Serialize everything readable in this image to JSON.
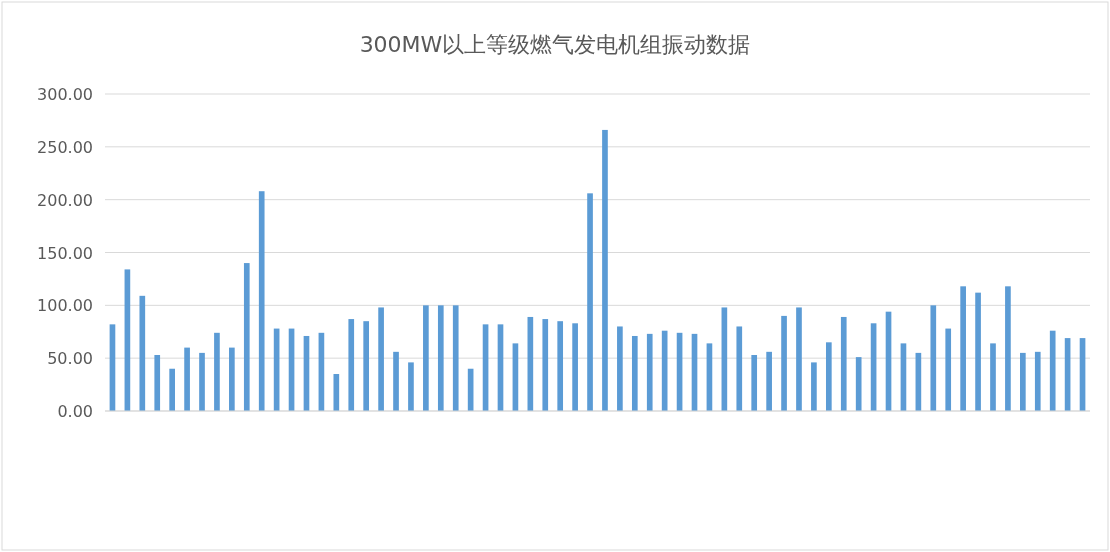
{
  "chart_data": {
    "type": "bar",
    "title": "300MW以上等级燃气发电机组振动数据",
    "categories": [
      null,
      null,
      null,
      null,
      null,
      null,
      null,
      null,
      null,
      null,
      null,
      null,
      null,
      null,
      null,
      null,
      null,
      null,
      null,
      null,
      null,
      null,
      null,
      null,
      null,
      null,
      null,
      null,
      null,
      null,
      null,
      null,
      null,
      null,
      null,
      null,
      null,
      null,
      null,
      null,
      null,
      null,
      null,
      null,
      null,
      null,
      null,
      null,
      null,
      null,
      null,
      null,
      null,
      null,
      null,
      null,
      null,
      null,
      null,
      null,
      null,
      null,
      null,
      null,
      null,
      null
    ],
    "values": [
      82,
      134,
      109,
      53,
      40,
      60,
      55,
      74,
      60,
      140,
      208,
      78,
      78,
      71,
      74,
      35,
      87,
      85,
      98,
      56,
      46,
      100,
      100,
      100,
      40,
      82,
      82,
      64,
      89,
      87,
      85,
      83,
      206,
      266,
      80,
      71,
      73,
      76,
      74,
      73,
      64,
      98,
      80,
      53,
      56,
      90,
      98,
      46,
      65,
      89,
      51,
      83,
      94,
      64,
      55,
      100,
      78,
      118,
      112,
      64,
      118,
      55,
      56,
      76,
      69,
      69
    ],
    "color": "#5b9bd5",
    "ylim": [
      0,
      300
    ],
    "yticks": [
      {
        "value": 0,
        "label": "0.00"
      },
      {
        "value": 50,
        "label": "50.00"
      },
      {
        "value": 100,
        "label": "100.00"
      },
      {
        "value": 150,
        "label": "150.00"
      },
      {
        "value": 200,
        "label": "200.00"
      },
      {
        "value": 250,
        "label": "250.00"
      },
      {
        "value": 300,
        "label": "300.00"
      }
    ],
    "grid": "y"
  }
}
